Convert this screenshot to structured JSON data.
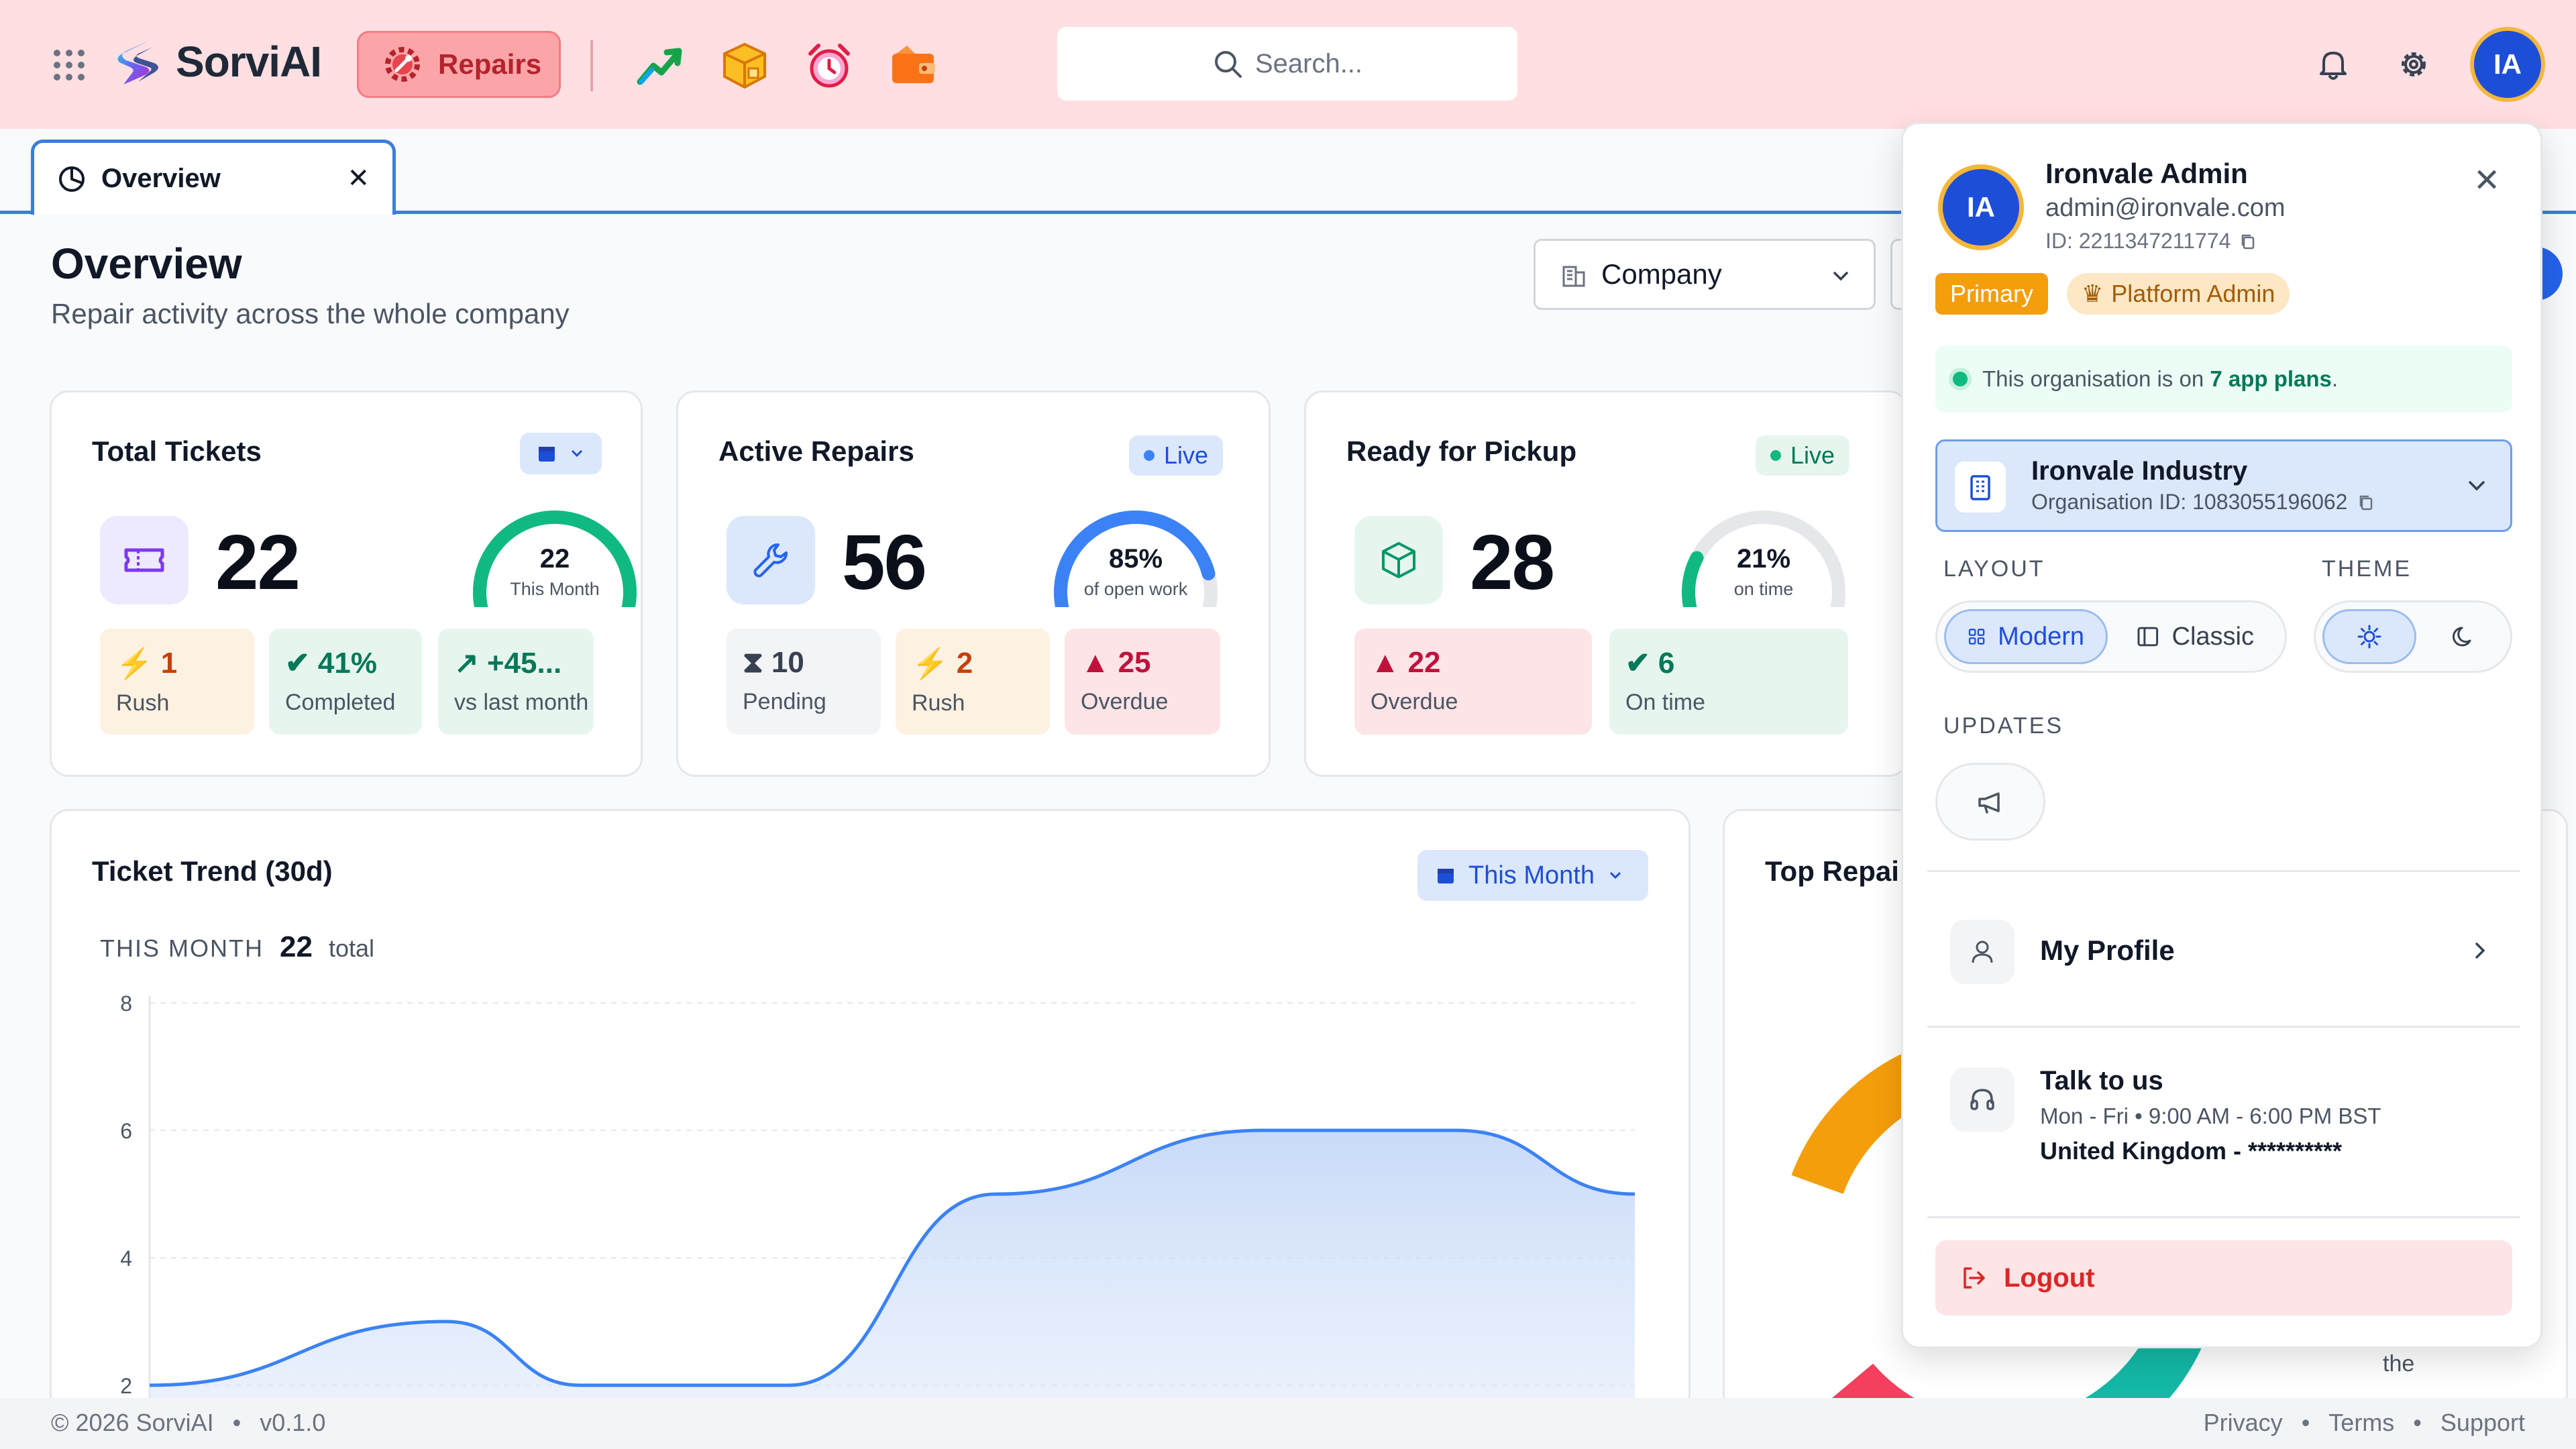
{
  "app": {
    "name": "SorviAI",
    "module": "Repairs"
  },
  "header": {
    "search_placeholder": "Search...",
    "user_initials": "IA",
    "apps": [
      "sales-chart-icon",
      "inventory-box-icon",
      "alarm-clock-icon",
      "wallet-icon"
    ]
  },
  "tab": {
    "label": "Overview"
  },
  "page": {
    "title": "Overview",
    "subtitle": "Repair activity across the whole company",
    "scope_select": "Company"
  },
  "cards": {
    "total": {
      "title": "Total Tickets",
      "value": "22",
      "gauge_value": "22",
      "gauge_caption": "This Month",
      "gauge_fraction": 1.0,
      "gauge_color": "#10b981",
      "chips": [
        {
          "value": "1",
          "label": "Rush"
        },
        {
          "value": "41%",
          "label": "Completed"
        },
        {
          "value": "+45...",
          "label": "vs last month"
        }
      ]
    },
    "active": {
      "title": "Active Repairs",
      "badge": "Live",
      "value": "56",
      "gauge_value": "85%",
      "gauge_caption": "of open work",
      "gauge_fraction": 0.85,
      "gauge_color": "#3b82f6",
      "chips": [
        {
          "value": "10",
          "label": "Pending"
        },
        {
          "value": "2",
          "label": "Rush"
        },
        {
          "value": "25",
          "label": "Overdue"
        }
      ]
    },
    "pickup": {
      "title": "Ready for Pickup",
      "badge": "Live",
      "value": "28",
      "gauge_value": "21%",
      "gauge_caption": "on time",
      "gauge_fraction": 0.21,
      "gauge_color": "#10b981",
      "chips": [
        {
          "value": "22",
          "label": "Overdue"
        },
        {
          "value": "6",
          "label": "On time"
        }
      ]
    }
  },
  "trend": {
    "title": "Ticket Trend (30d)",
    "range_button": "This Month",
    "summary_label": "THIS MONTH",
    "summary_value": "22",
    "summary_unit": "total"
  },
  "top_repairs": {
    "title": "Top Repai",
    "behind_text": "the"
  },
  "chart_data": [
    {
      "type": "area",
      "title": "Ticket Trend (30d)",
      "y_ticks": [
        2,
        4,
        6,
        8
      ],
      "ylim": [
        2,
        8
      ],
      "grid": true,
      "series": [
        {
          "color": "#3b82f6",
          "points": [
            [
              0,
              2
            ],
            [
              0.2,
              3
            ],
            [
              0.29,
              2
            ],
            [
              0.43,
              2
            ],
            [
              0.57,
              5
            ],
            [
              0.75,
              6
            ],
            [
              0.88,
              6
            ],
            [
              1,
              5
            ]
          ]
        }
      ]
    },
    {
      "type": "pie",
      "title": "Top Repai",
      "slice_colors": [
        "#f59e0b",
        "#3b82f6",
        "#ec4899",
        "#14b8a6",
        "#a855f7",
        "#f43f5e"
      ]
    }
  ],
  "footer": {
    "copyright": "© 2026 SorviAI",
    "version": "v0.1.0",
    "links": [
      "Privacy",
      "Terms",
      "Support"
    ]
  },
  "profile": {
    "name": "Ironvale Admin",
    "email": "admin@ironvale.com",
    "id": "ID: 2211347211774",
    "initials": "IA",
    "badge_primary": "Primary",
    "badge_role": "Platform Admin",
    "plans_prefix": "This organisation is on",
    "plans_count": "7 app plans",
    "plans_suffix": ".",
    "org_name": "Ironvale Industry",
    "org_id": "Organisation ID: 1083055196062",
    "layout_label": "LAYOUT",
    "layout_modern": "Modern",
    "layout_classic": "Classic",
    "theme_label": "THEME",
    "updates_label": "UPDATES",
    "my_profile": "My Profile",
    "talk_title": "Talk to us",
    "talk_hours": "Mon - Fri • 9:00 AM - 6:00 PM BST",
    "talk_location": "United Kingdom - **********",
    "logout": "Logout"
  }
}
